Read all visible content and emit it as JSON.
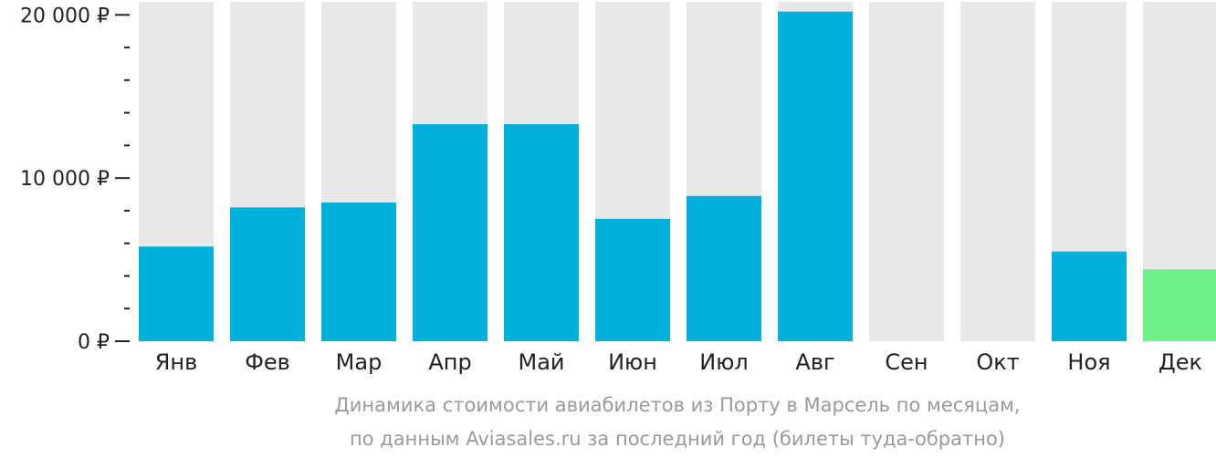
{
  "chart_data": {
    "type": "bar",
    "categories": [
      "Янв",
      "Фев",
      "Мар",
      "Апр",
      "Май",
      "Июн",
      "Июл",
      "Авг",
      "Сен",
      "Окт",
      "Ноя",
      "Дек"
    ],
    "values": [
      5800,
      8200,
      8500,
      13300,
      13300,
      7500,
      8900,
      20200,
      null,
      null,
      5500,
      4400
    ],
    "ylim": [
      0,
      20800
    ],
    "y_ticks": [
      {
        "value": 0,
        "label": "0 ₽"
      },
      {
        "value": 10000,
        "label": "10 000 ₽"
      },
      {
        "value": 20000,
        "label": "20 000 ₽"
      }
    ],
    "minor_tick_step": 2000,
    "highlight_index": 11,
    "grid": false,
    "colors": {
      "bar": "#00b0dc",
      "highlight": "#6ef18a",
      "track": "#e8e8e8",
      "axis": "#222222"
    },
    "caption_lines": [
      "Динамика стоимости авиабилетов из Порту в Марсель по месяцам,",
      "по данным Aviasales.ru за последний год (билеты туда-обратно)"
    ]
  }
}
